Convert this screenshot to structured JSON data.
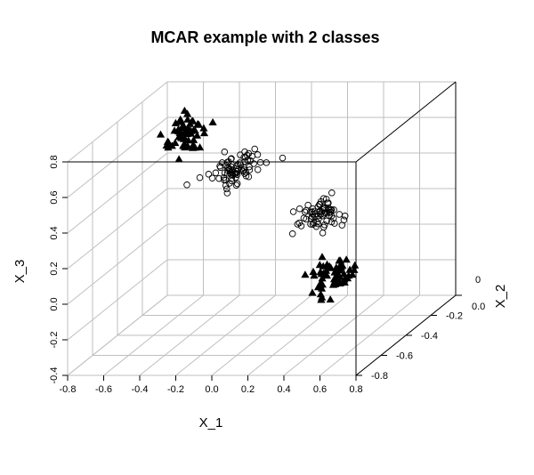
{
  "chart_data": {
    "type": "scatter",
    "title": "MCAR example with 2 classes",
    "xlabel": "X_1",
    "ylabel": "X_3",
    "zlabel": "X_2",
    "xlim": [
      -0.8,
      0.8
    ],
    "ylim": [
      -0.8,
      0.0
    ],
    "zlim": [
      -0.4,
      0.8
    ],
    "x_ticks": [
      "-0.8",
      "-0.6",
      "-0.4",
      "-0.2",
      "0.0",
      "0.2",
      "0.4",
      "0.6",
      "0.8"
    ],
    "y_ticks": [
      "-0.8",
      "-0.6",
      "-0.4",
      "-0.2",
      "0.0",
      "0"
    ],
    "z_ticks": [
      "-0.4",
      "-0.2",
      "0.0",
      "0.2",
      "0.4",
      "0.6",
      "0.8"
    ],
    "grid": true,
    "legend": "none",
    "colors": {
      "points": "#000000",
      "grid": "#bfbfbf",
      "box": "#000000"
    },
    "series": [
      {
        "marker": "filled-triangle",
        "clusters": [
          {
            "center": {
              "x": -0.6,
              "y": -0.15,
              "z": 0.6
            },
            "n": 60,
            "spread": {
              "x": 0.05,
              "y": 0.05,
              "z": 0.05
            }
          },
          {
            "center": {
              "x": 0.6,
              "y": -0.7,
              "z": 0.1
            },
            "n": 60,
            "spread": {
              "x": 0.05,
              "y": 0.05,
              "z": 0.05
            }
          }
        ]
      },
      {
        "marker": "open-circle",
        "clusters": [
          {
            "center": {
              "x": -0.25,
              "y": -0.25,
              "z": 0.45
            },
            "n": 80,
            "spread": {
              "x": 0.06,
              "y": 0.06,
              "z": 0.04
            }
          },
          {
            "center": {
              "x": 0.35,
              "y": -0.45,
              "z": 0.3
            },
            "n": 70,
            "spread": {
              "x": 0.06,
              "y": 0.05,
              "z": 0.04
            }
          }
        ]
      }
    ]
  }
}
